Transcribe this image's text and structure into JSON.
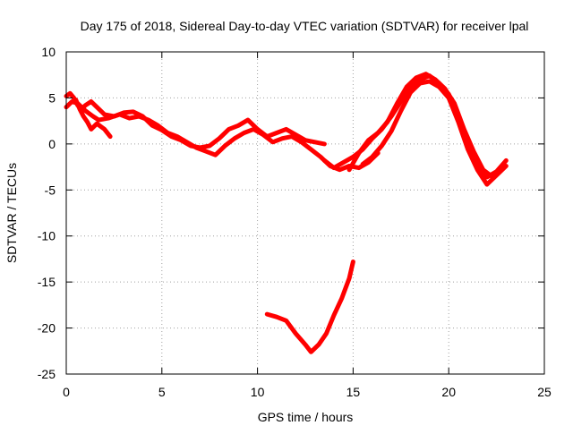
{
  "chart_data": {
    "type": "scatter",
    "title": "Day 175 of 2018, Sidereal Day-to-day VTEC variation (SDTVAR) for receiver lpal",
    "xlabel": "GPS time / hours",
    "ylabel": "SDTVAR / TECUs",
    "xlim": [
      0,
      25
    ],
    "ylim": [
      -25,
      10
    ],
    "xticks": [
      0,
      5,
      10,
      15,
      20,
      25
    ],
    "yticks": [
      -25,
      -20,
      -15,
      -10,
      -5,
      0,
      5,
      10
    ],
    "xtick_labels": [
      "0",
      "5",
      "10",
      "15",
      "20",
      "25"
    ],
    "ytick_labels": [
      "-25",
      "-20",
      "-15",
      "-10",
      "-5",
      "0",
      "5",
      "10"
    ],
    "grid": true,
    "series_color": "#ff0000",
    "series": [
      {
        "name": "track-1",
        "x": [
          0.0,
          0.2,
          0.4,
          0.6,
          0.8,
          1.0,
          1.3,
          1.6,
          2.0,
          2.5,
          3.0,
          3.5,
          4.0,
          4.5,
          5.0,
          5.5,
          6.0,
          6.5,
          7.0,
          7.5,
          8.0,
          8.5,
          9.0,
          9.5,
          10.0,
          10.5,
          11.0,
          11.5,
          12.0,
          12.5,
          13.0,
          13.5
        ],
        "y": [
          5.2,
          5.5,
          5.0,
          4.2,
          3.8,
          4.2,
          4.6,
          4.0,
          3.2,
          3.0,
          3.4,
          3.5,
          3.0,
          2.0,
          1.5,
          0.8,
          0.4,
          -0.2,
          -0.4,
          -0.2,
          0.6,
          1.6,
          2.0,
          2.6,
          1.6,
          0.8,
          1.2,
          1.6,
          1.0,
          0.4,
          0.2,
          0.0
        ]
      },
      {
        "name": "track-2",
        "x": [
          0.0,
          0.3,
          0.6,
          1.0,
          1.4,
          1.7,
          2.2,
          2.8,
          3.3,
          3.8,
          4.3,
          4.8,
          5.3,
          5.8,
          6.3,
          6.8,
          7.3,
          7.8,
          8.3,
          8.8,
          9.3,
          9.8,
          10.3,
          10.8,
          11.3,
          11.8,
          12.3,
          12.8,
          13.3,
          13.8,
          14.3,
          14.8,
          15.3,
          15.8,
          16.3
        ],
        "y": [
          4.0,
          4.6,
          4.4,
          3.6,
          3.0,
          2.6,
          2.8,
          3.2,
          2.8,
          3.0,
          2.6,
          2.0,
          1.2,
          0.8,
          0.2,
          -0.4,
          -0.8,
          -1.2,
          -0.2,
          0.6,
          1.2,
          1.6,
          1.0,
          0.2,
          0.6,
          0.8,
          0.2,
          -0.6,
          -1.4,
          -2.4,
          -2.8,
          -2.4,
          -2.6,
          -2.0,
          -1.0
        ]
      },
      {
        "name": "track-3",
        "x": [
          0.5,
          0.7,
          0.9,
          1.1,
          1.3,
          1.6,
          2.0,
          2.3
        ],
        "y": [
          4.8,
          3.8,
          3.0,
          2.4,
          1.6,
          2.2,
          1.6,
          0.8
        ]
      },
      {
        "name": "track-4",
        "x": [
          13.5,
          14.0,
          14.5,
          15.0,
          15.5,
          16.0,
          16.5,
          17.0,
          17.5,
          18.0,
          18.5,
          19.0,
          19.5,
          20.0,
          20.5,
          21.0,
          21.5,
          22.0,
          22.5,
          23.0
        ],
        "y": [
          -1.8,
          -2.6,
          -2.0,
          -1.4,
          -0.6,
          0.6,
          1.6,
          3.0,
          4.6,
          6.0,
          7.0,
          7.4,
          6.6,
          5.4,
          3.0,
          0.2,
          -2.4,
          -3.6,
          -3.0,
          -1.8
        ]
      },
      {
        "name": "track-5",
        "x": [
          14.8,
          15.3,
          15.8,
          16.3,
          16.8,
          17.3,
          17.8,
          18.3,
          18.8,
          19.3,
          19.8,
          20.3,
          20.8,
          21.3,
          21.8,
          22.3,
          22.8
        ],
        "y": [
          -2.8,
          -1.0,
          0.4,
          1.2,
          2.4,
          4.4,
          6.2,
          7.2,
          7.6,
          7.0,
          6.0,
          4.4,
          1.6,
          -0.8,
          -2.8,
          -3.6,
          -2.6
        ]
      },
      {
        "name": "track-6",
        "x": [
          15.5,
          16.0,
          16.5,
          17.0,
          17.5,
          18.0,
          18.5,
          19.0,
          19.5,
          20.0,
          20.5,
          21.0,
          21.5,
          22.0,
          22.5,
          23.0
        ],
        "y": [
          -2.2,
          -1.4,
          -0.2,
          1.4,
          3.6,
          5.6,
          6.6,
          6.8,
          6.2,
          5.0,
          2.4,
          -0.6,
          -2.8,
          -4.4,
          -3.4,
          -2.4
        ]
      },
      {
        "name": "track-7",
        "x": [
          10.5,
          11.0,
          11.5,
          12.0,
          12.5,
          12.8,
          13.2,
          13.6,
          14.0,
          14.4,
          14.8,
          15.0
        ],
        "y": [
          -18.5,
          -18.8,
          -19.2,
          -20.6,
          -21.8,
          -22.6,
          -21.8,
          -20.6,
          -18.6,
          -16.8,
          -14.6,
          -12.8
        ]
      }
    ]
  }
}
